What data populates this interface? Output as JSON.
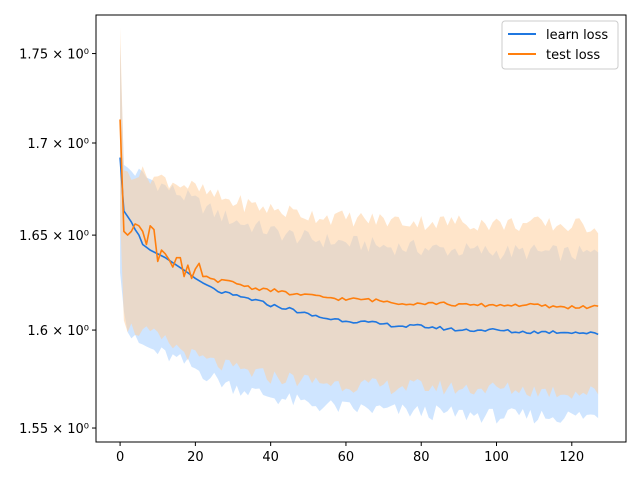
{
  "chart_data": {
    "type": "line",
    "title": "",
    "xlabel": "",
    "ylabel": "",
    "yscale": "log",
    "xlim": [
      -6.4,
      134.4
    ],
    "ylim": [
      1.543,
      1.772
    ],
    "grid": false,
    "legend_position": "top-right",
    "xticks": [
      0,
      20,
      40,
      60,
      80,
      100,
      120
    ],
    "xtick_labels": [
      "0",
      "20",
      "40",
      "60",
      "80",
      "100",
      "120"
    ],
    "yticks": [
      1.55,
      1.6,
      1.65,
      1.7,
      1.75
    ],
    "ytick_labels": [
      "1.55 × 10⁰",
      "1.6 × 10⁰",
      "1.65 × 10⁰",
      "1.7 × 10⁰",
      "1.75 × 10⁰"
    ],
    "x_range": [
      0,
      127
    ],
    "series": [
      {
        "name": "learn loss",
        "color": "#1f77e0",
        "band_color": "#a8d0ff",
        "knots_x": [
          0,
          1,
          2,
          3,
          4,
          5,
          6,
          8,
          10,
          12,
          15,
          18,
          20,
          25,
          30,
          35,
          40,
          45,
          50,
          55,
          60,
          65,
          70,
          75,
          80,
          85,
          90,
          95,
          100,
          105,
          110,
          115,
          120,
          127
        ],
        "knots_y": [
          1.692,
          1.663,
          1.66,
          1.657,
          1.653,
          1.65,
          1.645,
          1.642,
          1.64,
          1.638,
          1.634,
          1.63,
          1.627,
          1.621,
          1.618,
          1.616,
          1.613,
          1.611,
          1.608,
          1.606,
          1.605,
          1.604,
          1.603,
          1.602,
          1.602,
          1.601,
          1.6,
          1.6,
          1.6,
          1.599,
          1.599,
          1.599,
          1.599,
          1.598
        ],
        "upper_x": [
          0,
          1,
          2,
          4,
          8,
          12,
          16,
          20,
          25,
          30,
          40,
          50,
          60,
          70,
          80,
          90,
          100,
          110,
          120,
          127
        ],
        "upper_y": [
          1.755,
          1.688,
          1.686,
          1.684,
          1.68,
          1.676,
          1.672,
          1.668,
          1.662,
          1.658,
          1.652,
          1.648,
          1.646,
          1.644,
          1.643,
          1.642,
          1.641,
          1.641,
          1.64,
          1.64
        ],
        "lower_x": [
          0,
          1,
          2,
          4,
          8,
          12,
          16,
          20,
          25,
          30,
          40,
          50,
          60,
          70,
          80,
          90,
          100,
          110,
          120,
          127
        ],
        "lower_y": [
          1.63,
          1.61,
          1.6,
          1.594,
          1.59,
          1.587,
          1.584,
          1.58,
          1.575,
          1.571,
          1.566,
          1.562,
          1.56,
          1.559,
          1.558,
          1.557,
          1.556,
          1.556,
          1.556,
          1.556
        ]
      },
      {
        "name": "test loss",
        "color": "#ff7f0e",
        "band_color": "#ffcf9f",
        "knots_x": [
          0,
          1,
          2,
          3,
          4,
          5,
          6,
          7,
          8,
          9,
          10,
          11,
          12,
          13,
          14,
          15,
          16,
          17,
          18,
          19,
          20,
          21,
          22,
          25,
          30,
          35,
          40,
          45,
          50,
          55,
          60,
          65,
          70,
          75,
          80,
          85,
          90,
          95,
          100,
          105,
          110,
          115,
          120,
          127
        ],
        "knots_y": [
          1.713,
          1.652,
          1.65,
          1.652,
          1.656,
          1.655,
          1.652,
          1.645,
          1.655,
          1.653,
          1.636,
          1.642,
          1.64,
          1.637,
          1.633,
          1.638,
          1.638,
          1.628,
          1.634,
          1.627,
          1.632,
          1.635,
          1.628,
          1.626,
          1.625,
          1.622,
          1.621,
          1.619,
          1.618,
          1.617,
          1.616,
          1.616,
          1.615,
          1.614,
          1.614,
          1.614,
          1.613,
          1.613,
          1.613,
          1.613,
          1.613,
          1.612,
          1.612,
          1.612
        ],
        "upper_x": [
          0,
          1,
          2,
          4,
          8,
          12,
          16,
          20,
          25,
          30,
          40,
          50,
          60,
          70,
          80,
          90,
          100,
          110,
          120,
          127
        ],
        "upper_y": [
          1.765,
          1.685,
          1.684,
          1.684,
          1.682,
          1.68,
          1.678,
          1.675,
          1.671,
          1.668,
          1.664,
          1.661,
          1.659,
          1.658,
          1.657,
          1.657,
          1.656,
          1.656,
          1.655,
          1.655
        ],
        "lower_x": [
          0,
          1,
          2,
          4,
          8,
          12,
          16,
          20,
          25,
          30,
          40,
          50,
          60,
          70,
          80,
          90,
          100,
          110,
          120,
          127
        ],
        "lower_y": [
          1.661,
          1.605,
          1.602,
          1.6,
          1.598,
          1.594,
          1.59,
          1.586,
          1.583,
          1.58,
          1.576,
          1.574,
          1.572,
          1.571,
          1.571,
          1.57,
          1.57,
          1.569,
          1.568,
          1.568
        ]
      }
    ]
  }
}
